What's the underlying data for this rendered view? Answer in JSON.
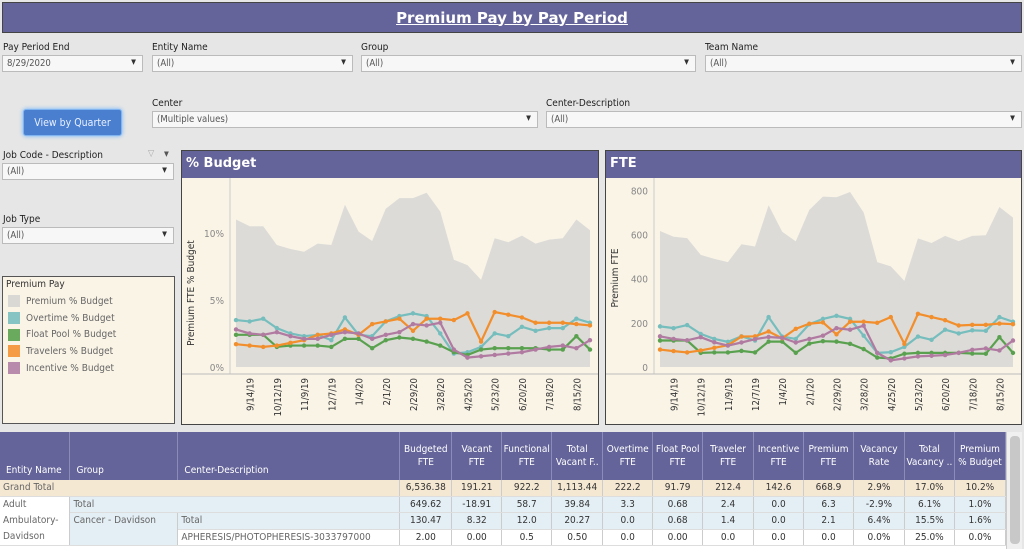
{
  "title": "Premium Pay by Pay Period",
  "filters": {
    "pay_period_end": {
      "label": "Pay Period End",
      "value": "8/29/2020"
    },
    "entity_name": {
      "label": "Entity Name",
      "value": "(All)"
    },
    "group": {
      "label": "Group",
      "value": "(All)"
    },
    "team_name": {
      "label": "Team Name",
      "value": "(All)"
    },
    "center": {
      "label": "Center",
      "value": "(Multiple values)"
    },
    "center_description": {
      "label": "Center-Description",
      "value": "(All)"
    },
    "job_code": {
      "label": "Job Code - Description",
      "value": "(All)"
    },
    "job_type": {
      "label": "Job Type",
      "value": "(All)"
    }
  },
  "view_by_quarter_label": "View by Quarter",
  "legend": {
    "title": "Premium Pay",
    "items": [
      {
        "label": "Premium % Budget",
        "color": "#d9d8d4"
      },
      {
        "label": "Overtime % Budget",
        "color": "#86c4c4"
      },
      {
        "label": "Float Pool % Budget",
        "color": "#6aaa5e"
      },
      {
        "label": "Travelers % Budget",
        "color": "#f59a45"
      },
      {
        "label": "Incentive % Budget",
        "color": "#b88aac"
      }
    ]
  },
  "chart_data": [
    {
      "type": "line",
      "title": "% Budget",
      "ylabel": "Premium FTE % Budget",
      "ylim": [
        0,
        13.5
      ],
      "yticks": [
        "0%",
        "5%",
        "10%"
      ],
      "ytick_values": [
        0,
        5,
        10
      ],
      "x": [
        "8/31/19",
        "9/14/19",
        "9/28/19",
        "10/12/19",
        "10/26/19",
        "11/9/19",
        "11/23/19",
        "12/7/19",
        "12/21/19",
        "1/4/20",
        "1/18/20",
        "2/1/20",
        "2/15/20",
        "2/29/20",
        "3/14/20",
        "3/28/20",
        "4/11/20",
        "4/25/20",
        "5/9/20",
        "5/23/20",
        "6/6/20",
        "6/20/20",
        "7/4/20",
        "7/18/20",
        "8/1/20",
        "8/15/20",
        "8/29/20"
      ],
      "xtick_labels": [
        "9/14/19",
        "10/12/19",
        "11/9/19",
        "12/7/19",
        "1/4/20",
        "2/1/20",
        "2/29/20",
        "3/28/20",
        "4/25/20",
        "5/23/20",
        "6/20/20",
        "7/18/20",
        "8/15/20"
      ],
      "series": [
        {
          "name": "Premium % Budget",
          "style": "area",
          "values": [
            11.0,
            10.5,
            10.5,
            9.1,
            8.8,
            8.6,
            9.2,
            9.1,
            12.1,
            10.1,
            9.4,
            11.8,
            12.6,
            12.6,
            13.0,
            11.6,
            8.0,
            7.6,
            6.5,
            9.6,
            9.3,
            9.8,
            9.2,
            9.5,
            9.6,
            11.0,
            10.2
          ]
        },
        {
          "name": "Overtime % Budget",
          "values": [
            3.5,
            3.4,
            3.6,
            2.9,
            2.5,
            2.3,
            2.4,
            2.0,
            3.7,
            2.4,
            2.3,
            3.4,
            3.8,
            4.0,
            3.8,
            2.5,
            1.0,
            1.1,
            1.5,
            2.5,
            2.3,
            3.0,
            2.7,
            2.9,
            2.9,
            3.6,
            3.3
          ]
        },
        {
          "name": "Float Pool % Budget",
          "values": [
            2.4,
            2.4,
            2.4,
            1.5,
            1.6,
            1.6,
            1.6,
            1.5,
            2.1,
            2.1,
            1.4,
            2.0,
            2.2,
            2.1,
            1.9,
            1.6,
            1.1,
            0.9,
            1.3,
            1.4,
            1.4,
            1.4,
            1.4,
            1.3,
            1.3,
            2.3,
            1.3
          ]
        },
        {
          "name": "Travelers % Budget",
          "values": [
            1.7,
            1.6,
            1.5,
            1.6,
            1.8,
            2.0,
            2.4,
            2.5,
            2.8,
            2.4,
            3.2,
            3.4,
            3.6,
            2.7,
            3.6,
            3.6,
            3.5,
            4.0,
            1.9,
            4.1,
            3.9,
            3.7,
            3.3,
            3.3,
            3.3,
            3.2,
            3.1
          ]
        },
        {
          "name": "Incentive % Budget",
          "values": [
            2.8,
            2.5,
            2.4,
            2.6,
            2.3,
            2.1,
            2.1,
            2.4,
            2.6,
            2.5,
            2.1,
            2.4,
            2.6,
            3.2,
            3.1,
            3.3,
            1.3,
            0.7,
            0.8,
            0.9,
            1.0,
            1.1,
            1.3,
            1.5,
            1.6,
            1.4,
            2.0
          ]
        }
      ]
    },
    {
      "type": "line",
      "title": "FTE",
      "ylabel": "Premium FTE",
      "ylim": [
        0,
        820
      ],
      "yticks": [
        "0",
        "200",
        "400",
        "600",
        "800"
      ],
      "ytick_values": [
        0,
        200,
        400,
        600,
        800
      ],
      "x": [
        "8/31/19",
        "9/14/19",
        "9/28/19",
        "10/12/19",
        "10/26/19",
        "11/9/19",
        "11/23/19",
        "12/7/19",
        "12/21/19",
        "1/4/20",
        "1/18/20",
        "2/1/20",
        "2/15/20",
        "2/29/20",
        "3/14/20",
        "3/28/20",
        "4/11/20",
        "4/25/20",
        "5/9/20",
        "5/23/20",
        "6/6/20",
        "6/20/20",
        "7/4/20",
        "7/18/20",
        "8/1/20",
        "8/15/20",
        "8/29/20"
      ],
      "xtick_labels": [
        "9/14/19",
        "10/12/19",
        "11/9/19",
        "12/7/19",
        "1/4/20",
        "2/1/20",
        "2/29/20",
        "3/28/20",
        "4/25/20",
        "5/23/20",
        "6/20/20",
        "7/18/20",
        "8/15/20"
      ],
      "series": [
        {
          "name": "Premium % Budget",
          "style": "area",
          "values": [
            616,
            590,
            584,
            508,
            490,
            475,
            556,
            546,
            733,
            613,
            569,
            712,
            772,
            769,
            793,
            700,
            475,
            456,
            390,
            583,
            562,
            594,
            570,
            594,
            597,
            725,
            677
          ]
        },
        {
          "name": "Overtime % Budget",
          "values": [
            184,
            176,
            190,
            150,
            127,
            114,
            139,
            120,
            226,
            138,
            127,
            194,
            218,
            232,
            218,
            142,
            64,
            67,
            91,
            138,
            123,
            169,
            152,
            166,
            164,
            226,
            205
          ]
        },
        {
          "name": "Float Pool % Budget",
          "values": [
            120,
            120,
            120,
            64,
            66,
            66,
            73,
            66,
            115,
            115,
            64,
            106,
            117,
            115,
            105,
            81,
            43,
            39,
            60,
            64,
            64,
            64,
            64,
            61,
            60,
            135,
            64
          ]
        },
        {
          "name": "Travelers % Budget",
          "values": [
            79,
            72,
            66,
            75,
            87,
            99,
            138,
            139,
            161,
            130,
            173,
            196,
            202,
            148,
            205,
            205,
            200,
            226,
            105,
            241,
            226,
            212,
            188,
            191,
            191,
            197,
            194
          ]
        },
        {
          "name": "Incentive % Budget",
          "values": [
            139,
            127,
            121,
            135,
            112,
            97,
            111,
            126,
            136,
            132,
            111,
            127,
            142,
            176,
            169,
            187,
            64,
            30,
            39,
            48,
            51,
            54,
            64,
            78,
            84,
            75,
            120
          ]
        }
      ]
    }
  ],
  "table": {
    "headers": [
      "Entity Name",
      "Group",
      "Center-Description",
      "Budgeted FTE",
      "Vacant FTE",
      "Functional FTE",
      "Total Vacant F..",
      "Overtime FTE",
      "Float Pool FTE",
      "Traveler FTE",
      "Incentive FTE",
      "Premium FTE",
      "Vacancy Rate",
      "Total Vacancy ..",
      "Premium % Budget"
    ],
    "grand_total": {
      "label": "Grand Total",
      "values": [
        "6,536.38",
        "191.21",
        "922.2",
        "1,113.44",
        "222.2",
        "91.79",
        "212.4",
        "142.6",
        "668.9",
        "2.9%",
        "17.0%",
        "10.2%"
      ]
    },
    "entity": "Adult Ambulatory-Davidson",
    "entity_total": {
      "label": "Total",
      "values": [
        "649.62",
        "-18.91",
        "58.7",
        "39.84",
        "3.3",
        "0.68",
        "2.4",
        "0.0",
        "6.3",
        "-2.9%",
        "6.1%",
        "1.0%"
      ]
    },
    "group": "Cancer - Davidson",
    "group_total": {
      "label": "Total",
      "values": [
        "130.47",
        "8.32",
        "12.0",
        "20.27",
        "0.0",
        "0.68",
        "1.4",
        "0.0",
        "2.1",
        "6.4%",
        "15.5%",
        "1.6%"
      ]
    },
    "detail": {
      "label": "APHERESIS/PHOTOPHERESIS-3033797000",
      "values": [
        "2.00",
        "0.00",
        "0.5",
        "0.50",
        "0.0",
        "0.00",
        "0.0",
        "0.0",
        "0.0",
        "0.0%",
        "25.0%",
        "0.0%"
      ]
    }
  }
}
